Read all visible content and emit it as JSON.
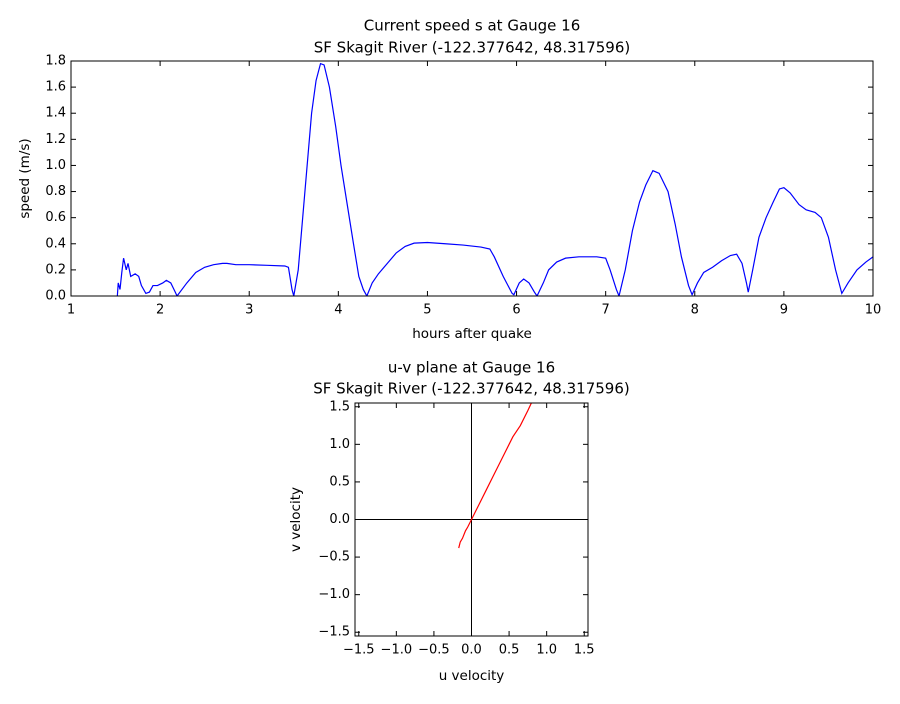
{
  "chart_data": [
    {
      "type": "line",
      "title": "Current speed s at Gauge 16",
      "subtitle": "SF Skagit River  (-122.377642, 48.317596)",
      "xlabel": "hours after quake",
      "ylabel": "speed (m/s)",
      "color": "#0000ff",
      "x": [
        1.52,
        1.53,
        1.55,
        1.57,
        1.59,
        1.62,
        1.64,
        1.67,
        1.72,
        1.76,
        1.79,
        1.84,
        1.88,
        1.92,
        1.97,
        2.03,
        2.07,
        2.12,
        2.17,
        2.19,
        2.3,
        2.4,
        2.5,
        2.6,
        2.7,
        2.75,
        2.85,
        3.0,
        3.2,
        3.4,
        3.44,
        3.48,
        3.5,
        3.55,
        3.6,
        3.65,
        3.7,
        3.75,
        3.8,
        3.84,
        3.9,
        3.97,
        4.03,
        4.1,
        4.17,
        4.23,
        4.28,
        4.32,
        4.38,
        4.45,
        4.55,
        4.65,
        4.75,
        4.85,
        5.0,
        5.2,
        5.4,
        5.6,
        5.7,
        5.75,
        5.85,
        5.95,
        5.97,
        6.03,
        6.08,
        6.14,
        6.2,
        6.23,
        6.3,
        6.36,
        6.45,
        6.55,
        6.7,
        6.9,
        7.0,
        7.05,
        7.12,
        7.15,
        7.22,
        7.3,
        7.38,
        7.45,
        7.53,
        7.6,
        7.7,
        7.78,
        7.85,
        7.93,
        7.97,
        8.03,
        8.1,
        8.2,
        8.3,
        8.4,
        8.47,
        8.53,
        8.58,
        8.6,
        8.65,
        8.72,
        8.8,
        8.88,
        8.95,
        9.0,
        9.07,
        9.17,
        9.25,
        9.35,
        9.42,
        9.5,
        9.58,
        9.65,
        9.72,
        9.82,
        9.92,
        10.0
      ],
      "values": [
        0,
        0.1,
        0.05,
        0.18,
        0.29,
        0.2,
        0.25,
        0.15,
        0.17,
        0.15,
        0.08,
        0.02,
        0.03,
        0.08,
        0.08,
        0.1,
        0.12,
        0.1,
        0.03,
        0,
        0.1,
        0.18,
        0.22,
        0.24,
        0.25,
        0.25,
        0.24,
        0.24,
        0.235,
        0.23,
        0.22,
        0.05,
        0,
        0.2,
        0.6,
        1.0,
        1.4,
        1.65,
        1.78,
        1.77,
        1.6,
        1.3,
        1.0,
        0.7,
        0.4,
        0.15,
        0.05,
        0,
        0.1,
        0.17,
        0.25,
        0.33,
        0.38,
        0.405,
        0.41,
        0.4,
        0.39,
        0.375,
        0.36,
        0.3,
        0.15,
        0.02,
        0.01,
        0.1,
        0.13,
        0.1,
        0.03,
        0,
        0.1,
        0.2,
        0.26,
        0.29,
        0.3,
        0.3,
        0.29,
        0.2,
        0.05,
        0,
        0.2,
        0.5,
        0.72,
        0.85,
        0.96,
        0.94,
        0.8,
        0.55,
        0.3,
        0.08,
        0.01,
        0.1,
        0.18,
        0.22,
        0.27,
        0.31,
        0.32,
        0.25,
        0.1,
        0.03,
        0.2,
        0.45,
        0.6,
        0.72,
        0.82,
        0.83,
        0.79,
        0.7,
        0.66,
        0.64,
        0.6,
        0.45,
        0.2,
        0.02,
        0.1,
        0.2,
        0.26,
        0.3
      ],
      "xlim": [
        1,
        10
      ],
      "xticks": [
        1,
        2,
        3,
        4,
        5,
        6,
        7,
        8,
        9,
        10
      ],
      "ylim": [
        0,
        1.8
      ],
      "yticks": [
        {
          "value": 0,
          "label": "0.0"
        },
        0.2,
        0.4,
        0.6,
        0.8,
        {
          "value": 1,
          "label": "1.0"
        },
        1.2,
        1.4,
        1.6,
        1.8
      ],
      "zero_lines": false
    },
    {
      "type": "line",
      "title": "u-v plane at Gauge 16",
      "subtitle": "SF Skagit River  (-122.377642, 48.317596)",
      "xlabel": "u velocity",
      "ylabel": "v velocity",
      "color": "#ff0000",
      "x": [
        -0.17,
        -0.15,
        -0.12,
        -0.08,
        -0.05,
        0,
        0.05,
        0.1,
        0.2,
        0.3,
        0.45,
        0.55,
        0.65,
        0.75,
        0.82
      ],
      "values": [
        -0.38,
        -0.3,
        -0.25,
        -0.15,
        -0.1,
        0,
        0.1,
        0.2,
        0.4,
        0.6,
        0.9,
        1.1,
        1.25,
        1.45,
        1.6
      ],
      "xlim": [
        -1.55,
        1.55
      ],
      "xticks": [
        {
          "value": -1.5,
          "label": "−1.5"
        },
        {
          "value": -1,
          "label": "−1.0"
        },
        {
          "value": -0.5,
          "label": "−0.5"
        },
        {
          "value": 0,
          "label": "0.0"
        },
        0.5,
        {
          "value": 1,
          "label": "1.0"
        },
        1.5
      ],
      "ylim": [
        -1.55,
        1.55
      ],
      "yticks": [
        {
          "value": -1.5,
          "label": "−1.5"
        },
        {
          "value": -1,
          "label": "−1.0"
        },
        {
          "value": -0.5,
          "label": "−0.5"
        },
        {
          "value": 0,
          "label": "0.0"
        },
        0.5,
        {
          "value": 1,
          "label": "1.0"
        },
        1.5
      ],
      "zero_lines": true
    }
  ]
}
